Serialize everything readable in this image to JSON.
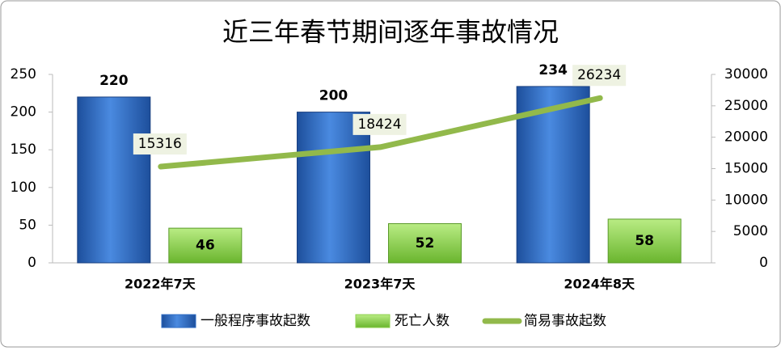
{
  "chart_data": {
    "type": "combo",
    "title": "近三年春节期间逐年事故情况",
    "categories": [
      "2022年7天",
      "2023年7天",
      "2024年8天"
    ],
    "series": [
      {
        "name": "一般程序事故起数",
        "type": "bar",
        "color": "#2f6cc4",
        "values": [
          220,
          200,
          234
        ]
      },
      {
        "name": "死亡人数",
        "type": "bar",
        "color": "#8fd14f",
        "values": [
          46,
          52,
          58
        ]
      },
      {
        "name": "简易事故起数",
        "type": "line",
        "axis": "y2",
        "color": "#92b94b",
        "values": [
          15316,
          18424,
          26234
        ]
      }
    ],
    "ylim": [
      0,
      250
    ],
    "yticks": [
      0,
      50,
      100,
      150,
      200,
      250
    ],
    "y2lim": [
      0,
      30000
    ],
    "y2ticks": [
      0,
      5000,
      10000,
      15000,
      20000,
      25000,
      30000
    ],
    "legend": "bottom",
    "grid": false
  }
}
